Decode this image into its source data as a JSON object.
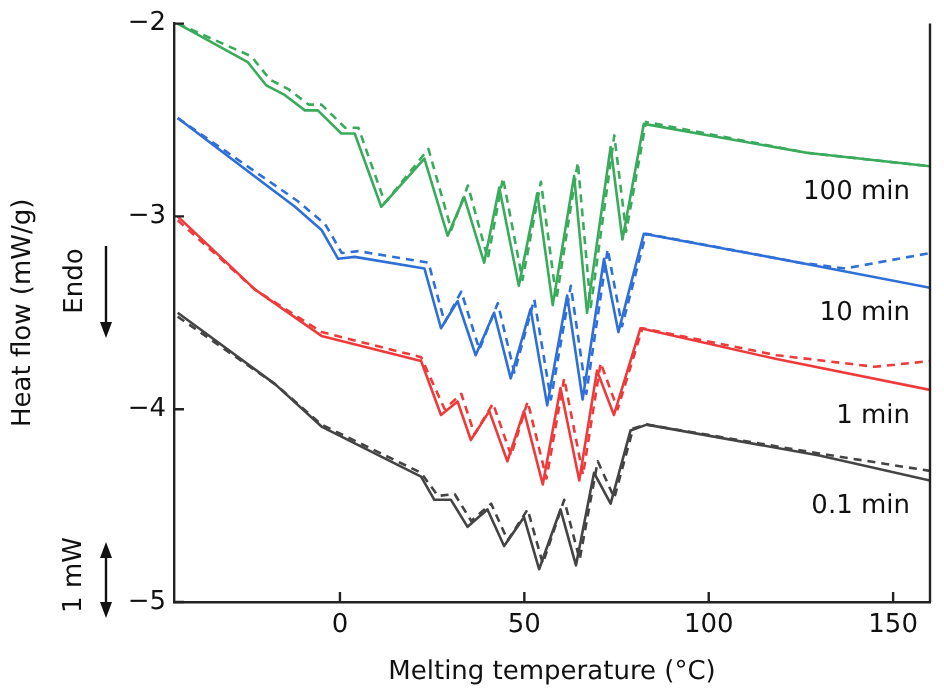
{
  "chart_data": {
    "type": "line",
    "xlabel": "Melting temperature (°C)",
    "ylabel": "Heat flow (mW/g)",
    "xlim": [
      -45,
      160
    ],
    "xticks": [
      0,
      50,
      100,
      150
    ],
    "ylim": [
      -5,
      -2
    ],
    "yticks": [
      -5,
      -4,
      -3,
      -2
    ],
    "grid": false,
    "legend": false,
    "marker": "none",
    "annotations": [
      "Endo",
      "1 mW"
    ],
    "series": [
      {
        "name": "100 min",
        "color": "#3aaa5c",
        "line_style": "solid",
        "x": [
          -44,
          -25,
          -20,
          -15,
          -9.5,
          -6,
          0.4,
          4,
          11.2,
          22.9,
          29.2,
          33.7,
          39.1,
          43.2,
          48.5,
          53.5,
          57.7,
          63.5,
          67,
          73.4,
          76.6,
          82.4,
          126.5,
          160
        ],
        "values": [
          -2.0,
          -2.2,
          -2.32,
          -2.37,
          -2.45,
          -2.45,
          -2.57,
          -2.57,
          -2.95,
          -2.7,
          -3.1,
          -2.9,
          -3.24,
          -2.85,
          -3.36,
          -2.88,
          -3.46,
          -2.79,
          -3.5,
          -2.64,
          -3.12,
          -2.52,
          -2.67,
          -2.74
        ]
      },
      {
        "color": "#3aaa5c",
        "line_style": "dashed",
        "x": [
          -44,
          -24,
          -19,
          -14,
          -8.5,
          -5,
          1.4,
          5,
          12.2,
          24,
          30.2,
          34.7,
          40.1,
          44.2,
          49.5,
          54.5,
          58.7,
          64.5,
          68,
          74.4,
          77.6,
          83,
          126.5,
          160
        ],
        "values": [
          -2.0,
          -2.17,
          -2.29,
          -2.34,
          -2.42,
          -2.42,
          -2.54,
          -2.54,
          -2.93,
          -2.65,
          -3.07,
          -2.84,
          -3.22,
          -2.8,
          -3.33,
          -2.82,
          -3.43,
          -2.72,
          -3.47,
          -2.58,
          -3.08,
          -2.51,
          -2.67,
          -2.74
        ]
      },
      {
        "name": "10 min",
        "color": "#2f6fd8",
        "line_style": "solid",
        "x": [
          -44,
          -12.2,
          -5,
          -0.5,
          4,
          22.9,
          27.4,
          31.9,
          36.8,
          41.8,
          46.3,
          51.7,
          56.2,
          61.6,
          65.8,
          71.6,
          75.5,
          82.4,
          124.7,
          160
        ],
        "values": [
          -2.49,
          -2.95,
          -3.07,
          -3.22,
          -3.21,
          -3.27,
          -3.58,
          -3.44,
          -3.72,
          -3.5,
          -3.84,
          -3.48,
          -3.98,
          -3.41,
          -3.95,
          -3.22,
          -3.6,
          -3.09,
          -3.24,
          -3.37
        ]
      },
      {
        "color": "#2f6fd8",
        "line_style": "dashed",
        "x": [
          -44,
          -11.5,
          -4,
          0.5,
          5,
          24,
          28.4,
          32.9,
          37.8,
          42.8,
          47.3,
          52.7,
          57.2,
          62.6,
          66.8,
          72.6,
          76.5,
          83,
          124.7,
          137,
          160
        ],
        "values": [
          -2.49,
          -2.92,
          -3.04,
          -3.19,
          -3.18,
          -3.24,
          -3.55,
          -3.39,
          -3.69,
          -3.45,
          -3.81,
          -3.43,
          -3.95,
          -3.36,
          -3.92,
          -3.17,
          -3.57,
          -3.09,
          -3.24,
          -3.27,
          -3.19
        ]
      },
      {
        "name": "1 min",
        "color": "#ee3a3a",
        "line_style": "solid",
        "x": [
          -44,
          -23,
          -5,
          22,
          27.4,
          31.9,
          35.5,
          40.5,
          45.4,
          49.9,
          55,
          59.8,
          64.9,
          69.7,
          74.3,
          81.5,
          118.4,
          160
        ],
        "values": [
          -3.0,
          -3.38,
          -3.62,
          -3.75,
          -4.03,
          -3.96,
          -4.16,
          -4.01,
          -4.27,
          -4.01,
          -4.39,
          -3.89,
          -4.37,
          -3.8,
          -4.03,
          -3.58,
          -3.74,
          -3.9
        ]
      },
      {
        "color": "#ee3a3a",
        "line_style": "dashed",
        "x": [
          -44,
          -23,
          -5,
          22,
          28.4,
          32.9,
          36.5,
          41.5,
          46.4,
          50.9,
          56,
          60.8,
          65.9,
          70.7,
          75.3,
          82,
          118.4,
          145,
          160
        ],
        "values": [
          -3.02,
          -3.38,
          -3.6,
          -3.73,
          -4.0,
          -3.92,
          -4.13,
          -3.97,
          -4.24,
          -3.96,
          -4.36,
          -3.84,
          -4.34,
          -3.76,
          -4.0,
          -3.58,
          -3.72,
          -3.78,
          -3.75
        ]
      },
      {
        "name": "0.1 min",
        "color": "#444444",
        "line_style": "solid",
        "x": [
          -44,
          -17.6,
          -5,
          22,
          25.6,
          30.1,
          34.6,
          40,
          44.5,
          49.9,
          54,
          59.8,
          64,
          68.9,
          73.4,
          78.8,
          83.2,
          130,
          160
        ],
        "values": [
          -3.5,
          -3.87,
          -4.09,
          -4.35,
          -4.47,
          -4.47,
          -4.61,
          -4.52,
          -4.71,
          -4.56,
          -4.83,
          -4.52,
          -4.81,
          -4.33,
          -4.49,
          -4.11,
          -4.08,
          -4.24,
          -4.37
        ]
      },
      {
        "color": "#444444",
        "line_style": "dashed",
        "x": [
          -44,
          -17.6,
          -5,
          22,
          26.6,
          31.1,
          35.6,
          41,
          45.5,
          50.9,
          55,
          60.8,
          65,
          69.9,
          74.4,
          79.5,
          83.2,
          130,
          160
        ],
        "values": [
          -3.52,
          -3.87,
          -4.08,
          -4.33,
          -4.45,
          -4.44,
          -4.58,
          -4.49,
          -4.68,
          -4.52,
          -4.8,
          -4.47,
          -4.78,
          -4.27,
          -4.46,
          -4.1,
          -4.08,
          -4.23,
          -4.32
        ]
      }
    ]
  }
}
